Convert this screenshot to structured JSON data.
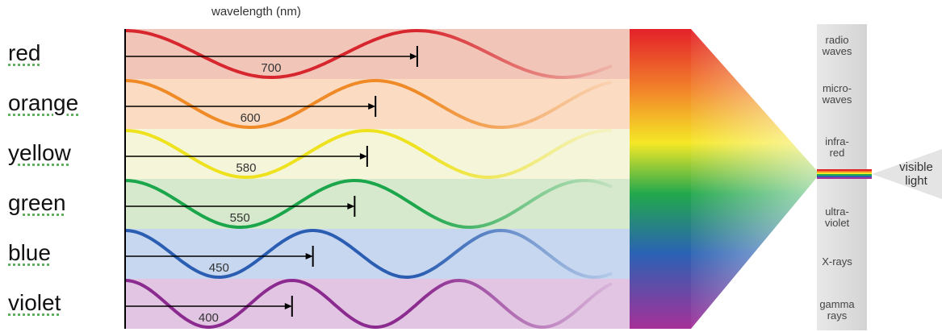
{
  "header": {
    "title": "wavelength (nm)"
  },
  "rows": [
    {
      "label": "red",
      "wavelength": 700,
      "color": "#d8262e",
      "band": "#f1c6b8"
    },
    {
      "label": "orange",
      "wavelength": 600,
      "color": "#ef8a26",
      "band": "#fbdcc3"
    },
    {
      "label": "yellow",
      "wavelength": 580,
      "color": "#eee21e",
      "band": "#f5f5d9"
    },
    {
      "label": "green",
      "wavelength": 550,
      "color": "#1ca64b",
      "band": "#d6e9cd"
    },
    {
      "label": "blue",
      "wavelength": 450,
      "color": "#2b5eb2",
      "band": "#c6d7ef"
    },
    {
      "label": "violet",
      "wavelength": 400,
      "color": "#8b2a8f",
      "band": "#e2c5e3"
    }
  ],
  "spectrum": {
    "bands": [
      "radio waves",
      "micro-waves",
      "infra-red",
      "ultra-violet",
      "X-rays",
      "gamma rays"
    ],
    "visible": "visible light"
  }
}
